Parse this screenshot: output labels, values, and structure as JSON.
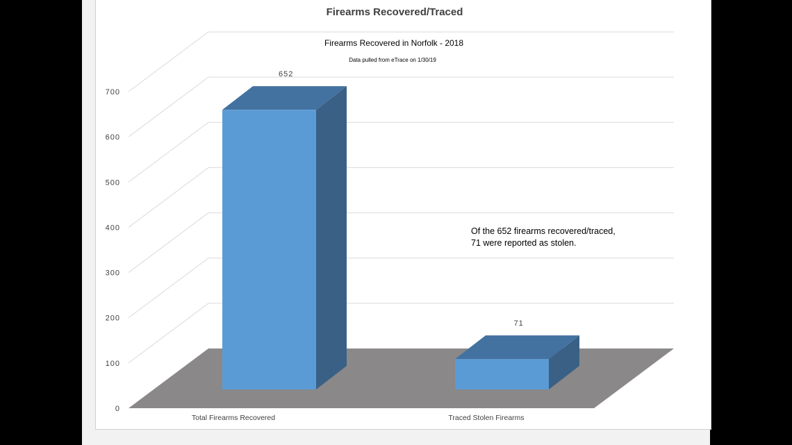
{
  "chart_data": {
    "type": "bar",
    "title": "Firearms Recovered/Traced",
    "subtitle": "Firearms Recovered in Norfolk - 2018",
    "note": "Data pulled from eTrace on 1/30/19",
    "categories": [
      "Total Firearms Recovered",
      "Traced Stolen Firearms"
    ],
    "series": [
      {
        "values": [
          652,
          71
        ],
        "data_labels": [
          "652",
          "71"
        ]
      }
    ],
    "ylim": [
      0,
      700
    ],
    "yticks": [
      0,
      100,
      200,
      300,
      400,
      500,
      600,
      700
    ],
    "ytick_labels": [
      "0",
      "100",
      "200",
      "300",
      "400",
      "500",
      "600",
      "700"
    ],
    "grid": true,
    "three_d": true,
    "annotation": [
      "Of the 652 firearms recovered/traced,",
      "71 were reported as stolen."
    ],
    "colors": {
      "bar_front": "#5b9bd5",
      "bar_side": "#3a6185",
      "bar_top": "#4472a0",
      "floor": "#8a8888",
      "grid": "#d9d9d9"
    }
  }
}
